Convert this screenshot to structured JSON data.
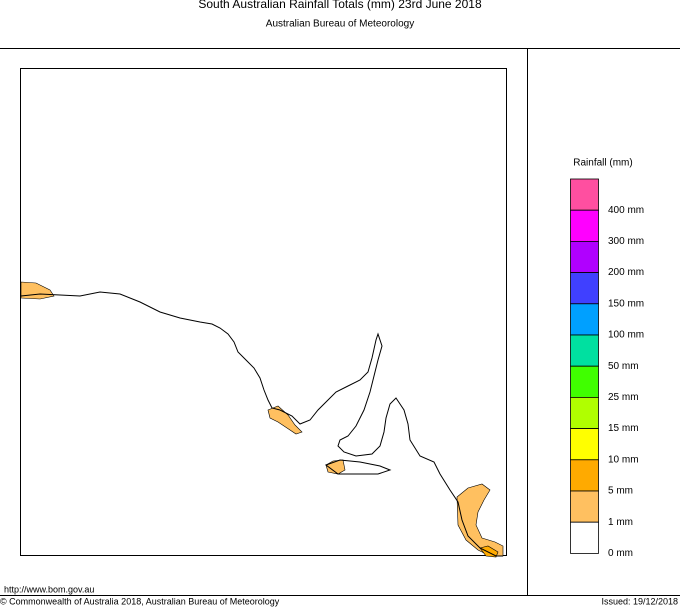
{
  "header": {
    "title": "South Australian Rainfall Totals (mm)   23rd June 2018",
    "subtitle": "Australian Bureau of Meteorology"
  },
  "legend": {
    "title": "Rainfall (mm)",
    "colors": [
      "#ff4fa0",
      "#ff00ff",
      "#b000ff",
      "#4040ff",
      "#00a0ff",
      "#00e0a0",
      "#40ff00",
      "#b0ff00",
      "#ffff00",
      "#ffaa00",
      "#ffc060",
      "#ffffff"
    ],
    "labels": [
      "400 mm",
      "300 mm",
      "200 mm",
      "150 mm",
      "100 mm",
      "50 mm",
      "25 mm",
      "15 mm",
      "10 mm",
      "5 mm",
      "1 mm",
      "0 mm"
    ]
  },
  "footer": {
    "url": "http://www.bom.gov.au",
    "copyright": "© Commonwealth of Australia 2018, Australian Bureau of Meteorology",
    "issued": "Issued: 19/12/2018"
  }
}
